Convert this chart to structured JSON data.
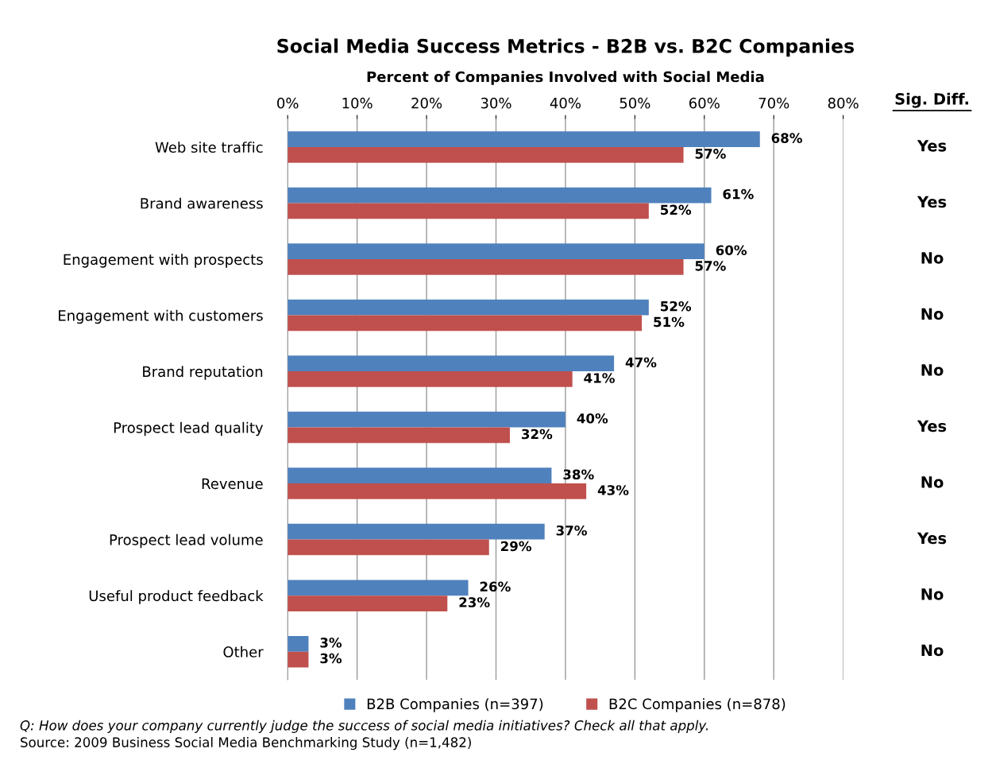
{
  "chart_data": {
    "type": "bar",
    "orientation": "horizontal",
    "title": "Social Media Success Metrics - B2B vs. B2C Companies",
    "xlabel": "Percent of Companies Involved with Social Media",
    "categories": [
      "Web site traffic",
      "Brand awareness",
      "Engagement with prospects",
      "Engagement with customers",
      "Brand reputation",
      "Prospect lead quality",
      "Revenue",
      "Prospect lead volume",
      "Useful product feedback",
      "Other"
    ],
    "series": [
      {
        "name": "B2B Companies (n=397)",
        "color": "#4f81bd",
        "values": [
          68,
          61,
          60,
          52,
          47,
          40,
          38,
          37,
          26,
          3
        ],
        "value_labels": [
          "68%",
          "61%",
          "60%",
          "52%",
          "47%",
          "40%",
          "38%",
          "37%",
          "26%",
          "3%"
        ]
      },
      {
        "name": "B2C Companies (n=878)",
        "color": "#c0504d",
        "values": [
          57,
          52,
          57,
          51,
          41,
          32,
          43,
          29,
          23,
          3
        ],
        "value_labels": [
          "57%",
          "52%",
          "57%",
          "51%",
          "41%",
          "32%",
          "43%",
          "29%",
          "23%",
          "3%"
        ]
      }
    ],
    "xlim": [
      0,
      80
    ],
    "xticks": [
      {
        "value": 0,
        "label": "0%"
      },
      {
        "value": 10,
        "label": "10%"
      },
      {
        "value": 20,
        "label": "20%"
      },
      {
        "value": 30,
        "label": "30%"
      },
      {
        "value": 40,
        "label": "40%"
      },
      {
        "value": 50,
        "label": "50%"
      },
      {
        "value": 60,
        "label": "60%"
      },
      {
        "value": 70,
        "label": "70%"
      },
      {
        "value": 80,
        "label": "80%"
      }
    ],
    "grid": "x",
    "legend": "bottom",
    "annotations": [
      "Sig. Diff.",
      "Yes",
      "Yes",
      "No",
      "No",
      "No",
      "Yes",
      "No",
      "Yes",
      "No",
      "No",
      "Q: How does your company currently judge the success of social media initiatives? Check all that apply.",
      "Source: 2009 Business Social Media Benchmarking Study (n=1,482)"
    ]
  }
}
